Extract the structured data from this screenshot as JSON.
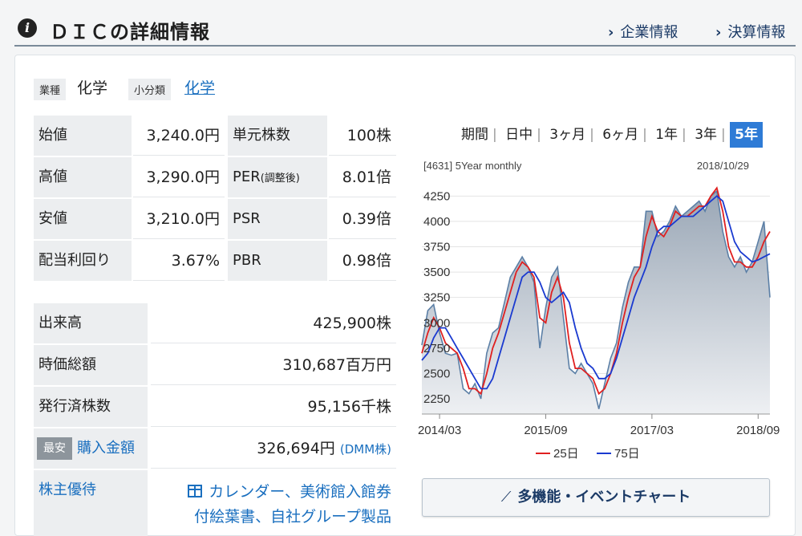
{
  "header": {
    "title": "ＤＩＣの詳細情報",
    "links": [
      "企業情報",
      "決算情報"
    ]
  },
  "industry": {
    "sector_label": "業種",
    "sector_value": "化学",
    "subclass_label": "小分類",
    "subclass_value": "化学"
  },
  "price_table": {
    "rows": [
      {
        "k1": "始値",
        "v1": "3,240.0円",
        "k2": "単元株数",
        "v2": "100株"
      },
      {
        "k1": "高値",
        "v1": "3,290.0円",
        "k2": "PER",
        "k2_note": "(調整後)",
        "v2": "8.01倍"
      },
      {
        "k1": "安値",
        "v1": "3,210.0円",
        "k2": "PSR",
        "v2": "0.39倍"
      },
      {
        "k1": "配当利回り",
        "v1": "3.67%",
        "k2": "PBR",
        "v2": "0.98倍"
      }
    ]
  },
  "stats_table": {
    "volume_label": "出来高",
    "volume_value": "425,900株",
    "mcap_label": "時価総額",
    "mcap_value": "310,687百万円",
    "shares_label": "発行済株数",
    "shares_value": "95,156千株",
    "buy_badge": "最安",
    "buy_label": "購入金額",
    "buy_value": "326,694円",
    "buy_broker": "(DMM株)",
    "perk_label": "株主優待",
    "perk_line1": "カレンダー、美術館入館券",
    "perk_line2": "付絵葉書、自社グループ製品"
  },
  "periods": {
    "items": [
      "期間",
      "日中",
      "3ヶ月",
      "6ヶ月",
      "1年",
      "3年",
      "5年"
    ],
    "active": "5年"
  },
  "chart_data": {
    "type": "line",
    "caption": "[4631] 5Year monthly",
    "date": "2018/10/29",
    "x_ticks": [
      "2014/03",
      "2015/09",
      "2017/03",
      "2018/09"
    ],
    "ylim": [
      2100,
      4300
    ],
    "y_ticks": [
      2250,
      2500,
      2750,
      3000,
      3250,
      3500,
      3750,
      4000,
      4250
    ],
    "series": [
      {
        "name": "price",
        "color": "#5b7fa6",
        "values": [
          2780,
          3120,
          3180,
          2900,
          2700,
          2680,
          2700,
          2350,
          2300,
          2400,
          2250,
          2700,
          2900,
          2950,
          3200,
          3450,
          3550,
          3650,
          3550,
          3400,
          2750,
          3150,
          3450,
          3550,
          3050,
          2550,
          2500,
          2600,
          2500,
          2400,
          2150,
          2400,
          2650,
          2800,
          3150,
          3400,
          3550,
          3550,
          4100,
          4100,
          3850,
          3900,
          4000,
          4150,
          4050,
          4100,
          4150,
          4200,
          4100,
          4250,
          4300,
          3900,
          3650,
          3550,
          3650,
          3500,
          3600,
          3800,
          4000,
          3250
        ]
      },
      {
        "name": "25日",
        "color": "#e02020",
        "values": [
          2700,
          2900,
          3050,
          2950,
          2800,
          2750,
          2700,
          2550,
          2350,
          2350,
          2300,
          2500,
          2750,
          2900,
          3100,
          3300,
          3500,
          3600,
          3550,
          3450,
          3050,
          3000,
          3300,
          3450,
          3250,
          2800,
          2550,
          2550,
          2500,
          2450,
          2300,
          2350,
          2500,
          2700,
          3000,
          3250,
          3450,
          3550,
          3850,
          4050,
          3900,
          3850,
          3950,
          4100,
          4050,
          4050,
          4100,
          4150,
          4150,
          4250,
          4330,
          4100,
          3750,
          3600,
          3600,
          3550,
          3550,
          3650,
          3800,
          3900
        ]
      },
      {
        "name": "75日",
        "color": "#1a3ad0",
        "values": [
          2630,
          2700,
          2850,
          2950,
          2950,
          2850,
          2750,
          2650,
          2550,
          2450,
          2350,
          2350,
          2450,
          2650,
          2850,
          3050,
          3250,
          3450,
          3500,
          3500,
          3400,
          3250,
          3200,
          3250,
          3300,
          3200,
          2950,
          2750,
          2600,
          2550,
          2450,
          2450,
          2500,
          2650,
          2850,
          3050,
          3250,
          3400,
          3550,
          3750,
          3900,
          3950,
          3950,
          4000,
          4050,
          4050,
          4050,
          4100,
          4150,
          4200,
          4250,
          4200,
          4000,
          3800,
          3700,
          3650,
          3600,
          3620,
          3650,
          3680
        ]
      }
    ],
    "legend": [
      "25日",
      "75日"
    ],
    "grid": true
  },
  "multi_button": "多機能・イベントチャート"
}
